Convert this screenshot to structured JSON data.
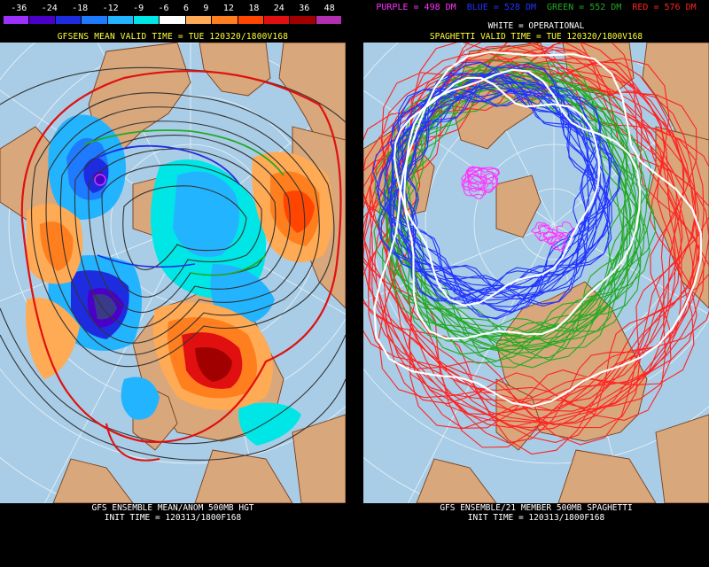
{
  "left": {
    "legend_values": [
      "-36",
      "-24",
      "-18",
      "-12",
      "-9",
      "-6",
      "6",
      "9",
      "12",
      "18",
      "24",
      "36",
      "48"
    ],
    "legend_colors": [
      "#9b30ff",
      "#4b00c8",
      "#1e2ce0",
      "#1e7bff",
      "#23b4ff",
      "#00e6e6",
      "#ffffff",
      "#ffaa55",
      "#ff7f1e",
      "#ff4500",
      "#e01010",
      "#a00000",
      "#b030b0"
    ],
    "valid_time": "GFSENS MEAN VALID TIME = TUE 120320/1800V168",
    "footer_title": "GFS ENSEMBLE MEAN/ANOM 500MB HGT",
    "footer_init": "INIT TIME = 120313/1800F168"
  },
  "right": {
    "legend": [
      {
        "text": "PURPLE = 498 DM",
        "color": "#ff33ff"
      },
      {
        "text": "BLUE = 528 DM",
        "color": "#2233ff"
      },
      {
        "text": "GREEN = 552 DM",
        "color": "#22aa22"
      },
      {
        "text": "RED = 576 DM",
        "color": "#ff2222"
      }
    ],
    "operational": "WHITE = OPERATIONAL",
    "valid_time": "SPAGHETTI VALID TIME = TUE 120320/1800V168",
    "footer_title": "GFS ENSEMBLE/21 MEMBER 500MB SPAGHETTI",
    "footer_init": "INIT TIME = 120313/1800F168"
  },
  "colors": {
    "ocean": "#a9cde6",
    "land": "#d8a77c",
    "border": "#7a3e1a",
    "background": "#000000"
  }
}
